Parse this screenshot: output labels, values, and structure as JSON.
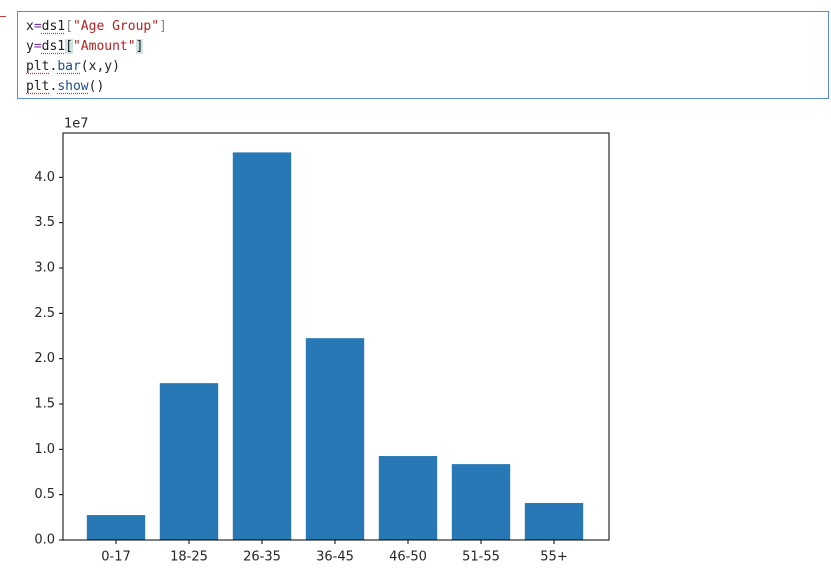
{
  "code": {
    "lines": [
      [
        "x",
        "=",
        "ds1",
        "[",
        "\"Age Group\"",
        "]"
      ],
      [
        "y",
        "=",
        "ds1",
        "[",
        "\"Amount\"",
        "]"
      ],
      [
        "plt",
        ".",
        "bar",
        "(x,y)"
      ],
      [
        "plt",
        ".",
        "show",
        "()"
      ]
    ]
  },
  "chart_data": {
    "type": "bar",
    "offset_label": "1e7",
    "categories": [
      "0-17",
      "18-25",
      "26-35",
      "36-45",
      "46-50",
      "51-55",
      "55+"
    ],
    "values": [
      0.275,
      1.73,
      4.275,
      2.226,
      0.926,
      0.837,
      0.408
    ],
    "color": "#2878b5",
    "ylim": [
      0,
      4.489
    ],
    "yticks": [
      {
        "value": 0,
        "label": "0.0"
      },
      0.5,
      {
        "value": 1,
        "label": "1.0"
      },
      1.5,
      {
        "value": 2,
        "label": "2.0"
      },
      2.5,
      {
        "value": 3,
        "label": "3.0"
      },
      3.5,
      {
        "value": 4,
        "label": "4.0"
      }
    ],
    "grid": false
  }
}
